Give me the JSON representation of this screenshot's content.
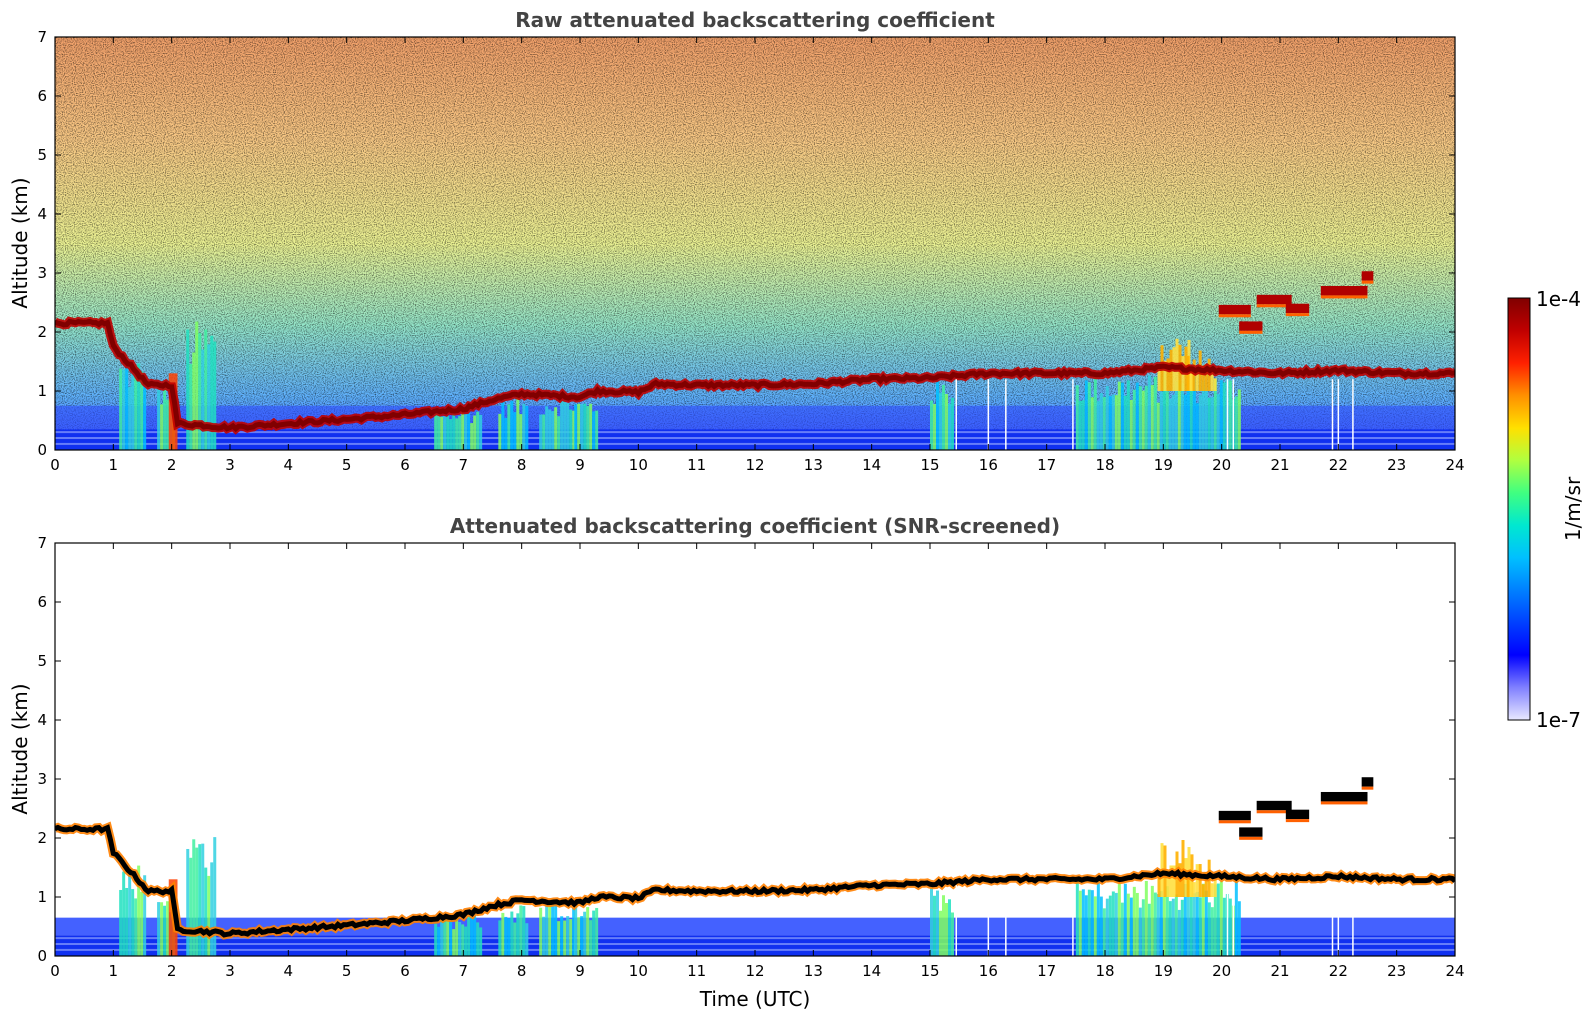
{
  "chart_data": [
    {
      "type": "heatmap",
      "title": "Raw attenuated backscattering coefficient",
      "xlabel": "",
      "ylabel": "Altitude (km)",
      "xlim": [
        0,
        24
      ],
      "ylim": [
        0,
        7
      ],
      "x_ticks": [
        "0",
        "1",
        "2",
        "3",
        "4",
        "5",
        "6",
        "7",
        "8",
        "9",
        "10",
        "11",
        "12",
        "13",
        "14",
        "15",
        "16",
        "17",
        "18",
        "19",
        "20",
        "21",
        "22",
        "23",
        "24"
      ],
      "y_ticks": [
        "0",
        "1",
        "2",
        "3",
        "4",
        "5",
        "6",
        "7"
      ],
      "grid": false,
      "noise": "high-altitude speckle increasing with altitude",
      "layer_base_km": [
        [
          0,
          2.15
        ],
        [
          0.9,
          2.15
        ],
        [
          1.0,
          1.75
        ],
        [
          1.6,
          1.1
        ],
        [
          2.0,
          1.1
        ],
        [
          2.1,
          0.45
        ],
        [
          3.0,
          0.38
        ],
        [
          4.0,
          0.45
        ],
        [
          5.0,
          0.52
        ],
        [
          6.0,
          0.6
        ],
        [
          7.0,
          0.7
        ],
        [
          7.5,
          0.85
        ],
        [
          8.0,
          0.95
        ],
        [
          9.0,
          0.9
        ],
        [
          9.3,
          1.0
        ],
        [
          10.0,
          0.98
        ],
        [
          10.3,
          1.12
        ],
        [
          11.0,
          1.1
        ],
        [
          12.0,
          1.1
        ],
        [
          13.0,
          1.12
        ],
        [
          14.0,
          1.2
        ],
        [
          15.0,
          1.22
        ],
        [
          16.0,
          1.3
        ],
        [
          17.0,
          1.3
        ],
        [
          18.0,
          1.3
        ],
        [
          19.0,
          1.4
        ],
        [
          20.0,
          1.35
        ],
        [
          21.0,
          1.3
        ],
        [
          22.0,
          1.35
        ],
        [
          23.0,
          1.3
        ],
        [
          24.0,
          1.3
        ]
      ],
      "boundary_layer_km": 0.35
    },
    {
      "type": "heatmap",
      "title": "Attenuated backscattering coefficient (SNR-screened)",
      "xlabel": "Time (UTC)",
      "ylabel": "Altitude (km)",
      "xlim": [
        0,
        24
      ],
      "ylim": [
        0,
        7
      ],
      "x_ticks": [
        "0",
        "1",
        "2",
        "3",
        "4",
        "5",
        "6",
        "7",
        "8",
        "9",
        "10",
        "11",
        "12",
        "13",
        "14",
        "15",
        "16",
        "17",
        "18",
        "19",
        "20",
        "21",
        "22",
        "23",
        "24"
      ],
      "y_ticks": [
        "0",
        "1",
        "2",
        "3",
        "4",
        "5",
        "6",
        "7"
      ],
      "grid": false,
      "screening": "noise above ~0.7 km removed"
    }
  ],
  "colorbar": {
    "max_label": "1e-4",
    "min_label": "1e-7",
    "units_label": "1/m/sr",
    "colors": [
      "#e8e8ff",
      "#8080ff",
      "#0000ff",
      "#0040ff",
      "#0080ff",
      "#00c0ff",
      "#00e8d0",
      "#40ff80",
      "#b0ff40",
      "#ffe000",
      "#ff9000",
      "#ff2000",
      "#c00000",
      "#800000"
    ]
  }
}
